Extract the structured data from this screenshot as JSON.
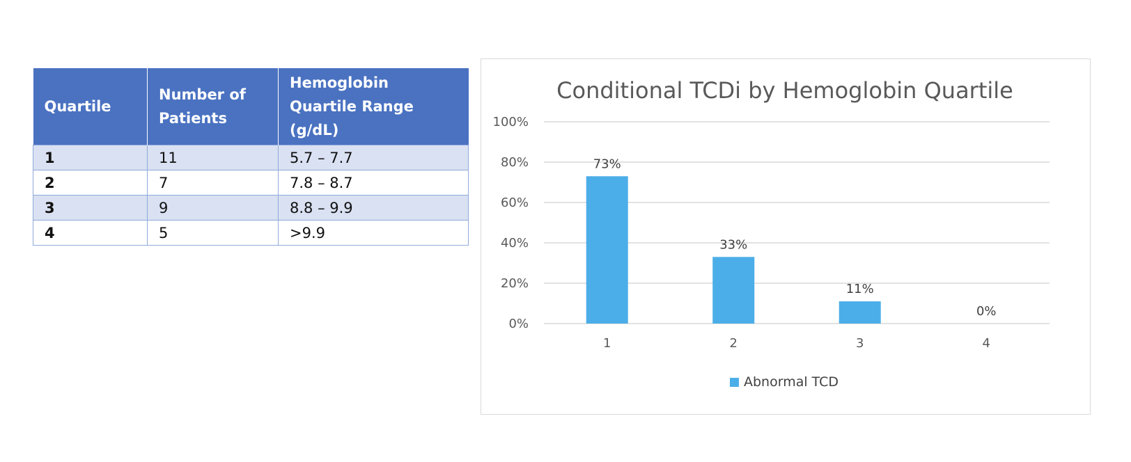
{
  "table": {
    "headers": [
      "Quartile",
      "Number of Patients",
      "Hemoglobin Quartile Range (g/dL)"
    ],
    "header_lines": [
      [
        "Quartile"
      ],
      [
        "Number of",
        "Patients"
      ],
      [
        "Hemoglobin",
        "Quartile Range",
        "(g/dL)"
      ]
    ],
    "rows": [
      {
        "quartile": "1",
        "patients": "11",
        "range": "5.7 – 7.7"
      },
      {
        "quartile": "2",
        "patients": "7",
        "range": "7.8 – 8.7"
      },
      {
        "quartile": "3",
        "patients": "9",
        "range": "8.8 – 9.9"
      },
      {
        "quartile": "4",
        "patients": "5",
        "range": ">9.9"
      }
    ]
  },
  "chart_data": {
    "type": "bar",
    "title": "Conditional TCDi by Hemoglobin Quartile",
    "categories": [
      "1",
      "2",
      "3",
      "4"
    ],
    "series": [
      {
        "name": "Abnormal TCD",
        "values": [
          73,
          33,
          11,
          0
        ],
        "labels": [
          "73%",
          "33%",
          "11%",
          "0%"
        ],
        "color": "#4baee8"
      }
    ],
    "ylim": [
      0,
      100
    ],
    "yticks": [
      0,
      20,
      40,
      60,
      80,
      100
    ],
    "ytick_labels": [
      "0%",
      "20%",
      "40%",
      "60%",
      "80%",
      "100%"
    ],
    "xlabel": "",
    "ylabel": "",
    "grid": true,
    "legend": "bottom"
  }
}
